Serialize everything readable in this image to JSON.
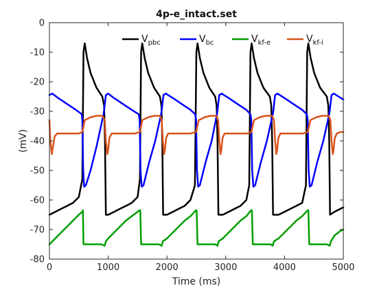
{
  "chart_data": {
    "type": "line",
    "title": "4p-e_intact.set",
    "xlabel": "Time (ms)",
    "ylabel": "(mV)",
    "xlim": [
      0,
      5000
    ],
    "ylim": [
      -80,
      0
    ],
    "xticks": [
      0,
      1000,
      2000,
      3000,
      4000,
      5000
    ],
    "yticks": [
      0,
      -10,
      -20,
      -30,
      -40,
      -50,
      -60,
      -70,
      -80
    ],
    "grid": false,
    "legend_position": "top",
    "legend_orientation": "horizontal",
    "series": [
      {
        "name": "V",
        "sub": "pbc",
        "color": "#000000",
        "x": [
          0,
          100,
          200,
          300,
          400,
          500,
          560,
          580,
          600,
          640,
          700,
          800,
          900,
          930,
          945,
          960,
          1000,
          1100,
          1200,
          1300,
          1400,
          1500,
          1540,
          1560,
          1580,
          1620,
          1680,
          1780,
          1880,
          1905,
          1920,
          1935,
          2000,
          2100,
          2200,
          2300,
          2400,
          2475,
          2500,
          2520,
          2560,
          2620,
          2720,
          2820,
          2845,
          2860,
          2875,
          2950,
          3050,
          3150,
          3250,
          3350,
          3400,
          3420,
          3440,
          3480,
          3540,
          3640,
          3750,
          3775,
          3790,
          3805,
          3900,
          4000,
          4100,
          4200,
          4300,
          4365,
          4385,
          4405,
          4445,
          4505,
          4605,
          4720,
          4745,
          4760,
          4775,
          4850,
          4950,
          5000
        ],
        "y": [
          -65,
          -64,
          -63,
          -62,
          -61,
          -59,
          -53,
          -10,
          -7,
          -12,
          -17,
          -22,
          -25,
          -28,
          -40,
          -65,
          -65,
          -64,
          -63,
          -62,
          -61,
          -59,
          -53,
          -10,
          -7,
          -12,
          -17,
          -22,
          -25,
          -28,
          -40,
          -65,
          -65,
          -64,
          -63,
          -62,
          -60,
          -55,
          -10,
          -7,
          -12,
          -17,
          -22,
          -25,
          -28,
          -40,
          -65,
          -65,
          -64,
          -63,
          -62,
          -60,
          -55,
          -10,
          -7,
          -12,
          -17,
          -22,
          -25,
          -28,
          -40,
          -65,
          -65,
          -64,
          -63,
          -62,
          -61,
          -55,
          -10,
          -7,
          -12,
          -17,
          -22,
          -25,
          -28,
          -40,
          -65,
          -64,
          -63,
          -62.5
        ]
      },
      {
        "name": "V",
        "sub": "bc",
        "color": "#0000ff",
        "x": [
          0,
          50,
          150,
          300,
          450,
          550,
          560,
          575,
          590,
          620,
          700,
          800,
          920,
          935,
          945,
          960,
          1000,
          1100,
          1250,
          1400,
          1520,
          1535,
          1550,
          1570,
          1600,
          1700,
          1800,
          1900,
          1915,
          1925,
          1940,
          1980,
          2100,
          2250,
          2400,
          2480,
          2495,
          2510,
          2530,
          2560,
          2660,
          2760,
          2850,
          2865,
          2875,
          2890,
          2930,
          3050,
          3200,
          3350,
          3420,
          3435,
          3450,
          3470,
          3500,
          3600,
          3700,
          3800,
          3815,
          3825,
          3840,
          3880,
          4000,
          4150,
          4300,
          4380,
          4395,
          4410,
          4430,
          4460,
          4560,
          4660,
          4760,
          4775,
          4785,
          4800,
          4840,
          4920,
          5000
        ],
        "y": [
          -24.5,
          -24,
          -25.5,
          -27.5,
          -29.5,
          -31,
          -33,
          -50,
          -55.5,
          -55,
          -50,
          -42,
          -31,
          -29,
          -27,
          -24.5,
          -24,
          -25.5,
          -27.5,
          -29.5,
          -31,
          -33,
          -50,
          -55.5,
          -55,
          -47,
          -40,
          -31,
          -29,
          -27,
          -24.5,
          -24,
          -25.5,
          -27.5,
          -29.5,
          -31,
          -33,
          -50,
          -55.5,
          -55,
          -47,
          -40,
          -31,
          -29,
          -27,
          -24.5,
          -24,
          -25.5,
          -27.5,
          -29.5,
          -31,
          -33,
          -50,
          -55.5,
          -55,
          -47,
          -40,
          -31,
          -29,
          -27,
          -24.5,
          -24,
          -25.5,
          -27.5,
          -29.5,
          -31,
          -33,
          -50,
          -55.5,
          -55,
          -47,
          -40,
          -31,
          -29,
          -27,
          -24.5,
          -24,
          -25,
          -26
        ]
      },
      {
        "name": "V",
        "sub": "kf-e",
        "color": "#009e00",
        "x": [
          0,
          100,
          200,
          300,
          400,
          500,
          560,
          570,
          580,
          640,
          760,
          880,
          940,
          960,
          1000,
          1100,
          1200,
          1300,
          1400,
          1500,
          1530,
          1545,
          1560,
          1620,
          1740,
          1860,
          1910,
          1930,
          2000,
          2100,
          2200,
          2300,
          2400,
          2470,
          2490,
          2505,
          2520,
          2580,
          2700,
          2820,
          2860,
          2880,
          2950,
          3050,
          3150,
          3250,
          3350,
          3410,
          3430,
          3445,
          3460,
          3520,
          3640,
          3760,
          3800,
          3820,
          3900,
          4000,
          4100,
          4200,
          4300,
          4370,
          4390,
          4405,
          4420,
          4480,
          4600,
          4720,
          4770,
          4790,
          4850,
          4950,
          5000
        ],
        "y": [
          -75,
          -73,
          -71,
          -69,
          -67,
          -65,
          -64,
          -63.5,
          -75,
          -75,
          -75,
          -75,
          -75.5,
          -74,
          -73,
          -71,
          -69,
          -67,
          -65.5,
          -64,
          -63.5,
          -63.5,
          -75,
          -75,
          -75,
          -75,
          -75.5,
          -74,
          -73,
          -71,
          -69,
          -67,
          -65.5,
          -64,
          -63.5,
          -63.5,
          -75,
          -75,
          -75,
          -75,
          -75.5,
          -74,
          -73,
          -71,
          -69,
          -67,
          -65.5,
          -64,
          -63.5,
          -63.5,
          -75,
          -75,
          -75,
          -75,
          -75.5,
          -74,
          -73,
          -71,
          -69,
          -67,
          -65.5,
          -64,
          -63.5,
          -63.5,
          -75,
          -75,
          -75,
          -75,
          -75.5,
          -74,
          -72,
          -70.5,
          -70
        ]
      },
      {
        "name": "V",
        "sub": "kf-i",
        "color": "#d95319",
        "x": [
          0,
          15,
          40,
          60,
          90,
          130,
          200,
          300,
          400,
          500,
          560,
          600,
          700,
          800,
          900,
          940,
          960,
          985,
          1000,
          1020,
          1060,
          1150,
          1250,
          1350,
          1450,
          1540,
          1580,
          1680,
          1780,
          1880,
          1910,
          1930,
          1950,
          1965,
          1985,
          2020,
          2100,
          2200,
          2300,
          2400,
          2495,
          2540,
          2640,
          2740,
          2840,
          2870,
          2890,
          2910,
          2925,
          2945,
          2980,
          3060,
          3160,
          3260,
          3360,
          3435,
          3480,
          3580,
          3680,
          3790,
          3820,
          3840,
          3860,
          3875,
          3895,
          3930,
          4010,
          4110,
          4210,
          4310,
          4395,
          4440,
          4540,
          4640,
          4750,
          4780,
          4800,
          4820,
          4835,
          4855,
          4890,
          4950,
          5000
        ],
        "y": [
          -33,
          -40,
          -44.5,
          -42,
          -38.5,
          -37.5,
          -37.5,
          -37.5,
          -37.5,
          -37.5,
          -37,
          -33,
          -32,
          -31.5,
          -31.5,
          -33,
          -40,
          -44.5,
          -43,
          -39,
          -37.5,
          -37.5,
          -37.5,
          -37.5,
          -37.5,
          -37,
          -33,
          -32,
          -31.5,
          -31.5,
          -33,
          -40,
          -44.5,
          -43,
          -39,
          -37.5,
          -37.5,
          -37.5,
          -37.5,
          -37.5,
          -37,
          -33,
          -32,
          -31.5,
          -31.5,
          -33,
          -40,
          -44.5,
          -43,
          -39,
          -37.5,
          -37.5,
          -37.5,
          -37.5,
          -37.5,
          -37,
          -33,
          -32,
          -31.5,
          -31.5,
          -33,
          -40,
          -44.5,
          -43,
          -39,
          -37.5,
          -37.5,
          -37.5,
          -37.5,
          -37.5,
          -37,
          -33,
          -32,
          -31.5,
          -31.5,
          -33,
          -40,
          -44.5,
          -43,
          -39,
          -37.5,
          -37,
          -37
        ]
      }
    ]
  }
}
